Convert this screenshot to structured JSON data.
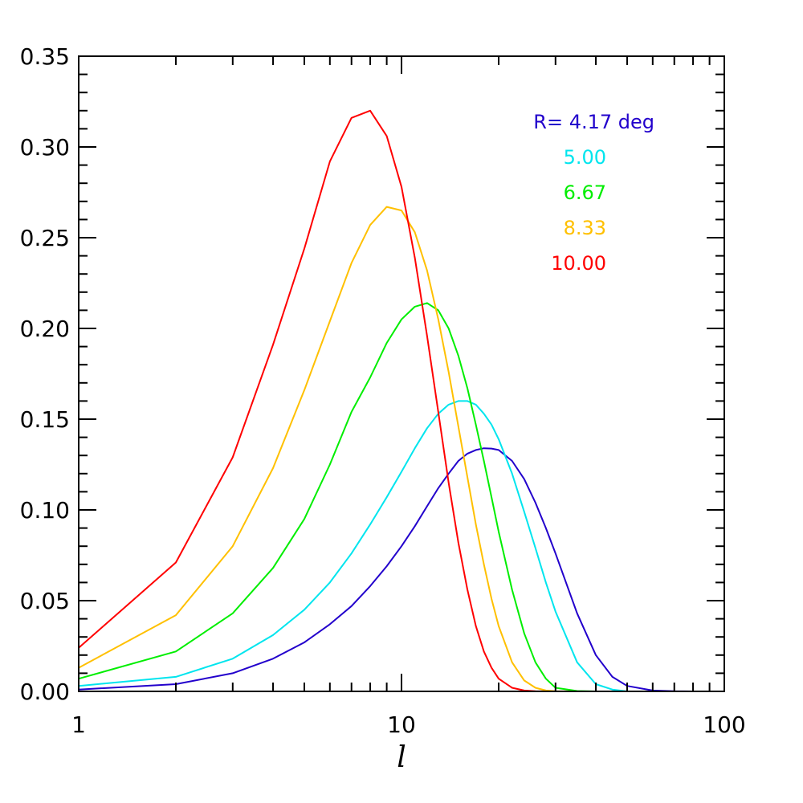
{
  "chart_data": {
    "type": "line",
    "title": "",
    "xlabel": "l",
    "ylabel": "",
    "xscale": "log",
    "xlim": [
      1,
      100
    ],
    "ylim": [
      0,
      0.35
    ],
    "grid": false,
    "legend_placement": "top-right",
    "x_ticks": [
      "1",
      "10",
      "100"
    ],
    "y_ticks": [
      "0.00",
      "0.05",
      "0.10",
      "0.15",
      "0.20",
      "0.25",
      "0.30",
      "0.35"
    ],
    "x": [
      1,
      2,
      3,
      4,
      5,
      6,
      7,
      8,
      9,
      10,
      11,
      12,
      13,
      14,
      15,
      16,
      17,
      18,
      19,
      20,
      22,
      24,
      26,
      28,
      30,
      35,
      40,
      45,
      50,
      60,
      70,
      80,
      100
    ],
    "series": [
      {
        "name": "R= 4.17 deg",
        "color": "#2200cc",
        "values": [
          0.001,
          0.004,
          0.01,
          0.018,
          0.027,
          0.037,
          0.047,
          0.058,
          0.069,
          0.08,
          0.091,
          0.102,
          0.112,
          0.12,
          0.127,
          0.131,
          0.133,
          0.134,
          0.1338,
          0.133,
          0.127,
          0.117,
          0.104,
          0.09,
          0.076,
          0.043,
          0.02,
          0.008,
          0.003,
          0.0005,
          0.0001,
          0.0,
          0.0
        ]
      },
      {
        "name": "5.00",
        "color": "#00e5ee",
        "values": [
          0.003,
          0.008,
          0.018,
          0.031,
          0.045,
          0.06,
          0.076,
          0.092,
          0.107,
          0.121,
          0.134,
          0.145,
          0.153,
          0.158,
          0.16,
          0.16,
          0.158,
          0.153,
          0.147,
          0.139,
          0.12,
          0.099,
          0.079,
          0.06,
          0.044,
          0.016,
          0.004,
          0.001,
          0.0,
          0.0,
          0.0,
          0.0,
          0.0
        ]
      },
      {
        "name": "6.67",
        "color": "#00ee00",
        "values": [
          0.007,
          0.022,
          0.043,
          0.068,
          0.095,
          0.125,
          0.154,
          0.173,
          0.192,
          0.205,
          0.212,
          0.214,
          0.21,
          0.2,
          0.185,
          0.167,
          0.147,
          0.127,
          0.107,
          0.088,
          0.056,
          0.032,
          0.016,
          0.007,
          0.002,
          0.0002,
          0.0,
          0.0,
          0.0,
          0.0,
          0.0,
          0.0,
          0.0
        ]
      },
      {
        "name": "8.33",
        "color": "#ffc000",
        "values": [
          0.013,
          0.042,
          0.08,
          0.123,
          0.166,
          0.204,
          0.236,
          0.257,
          0.267,
          0.265,
          0.253,
          0.232,
          0.205,
          0.176,
          0.146,
          0.118,
          0.092,
          0.07,
          0.051,
          0.036,
          0.016,
          0.006,
          0.002,
          0.0005,
          0.0001,
          0.0,
          0.0,
          0.0,
          0.0,
          0.0,
          0.0,
          0.0,
          0.0
        ]
      },
      {
        "name": "10.00",
        "color": "#ff0000",
        "values": [
          0.024,
          0.071,
          0.129,
          0.191,
          0.244,
          0.292,
          0.316,
          0.32,
          0.306,
          0.278,
          0.239,
          0.196,
          0.154,
          0.115,
          0.082,
          0.056,
          0.036,
          0.022,
          0.013,
          0.007,
          0.002,
          0.0005,
          0.0001,
          0.0,
          0.0,
          0.0,
          0.0,
          0.0,
          0.0,
          0.0,
          0.0,
          0.0,
          0.0
        ]
      }
    ]
  }
}
